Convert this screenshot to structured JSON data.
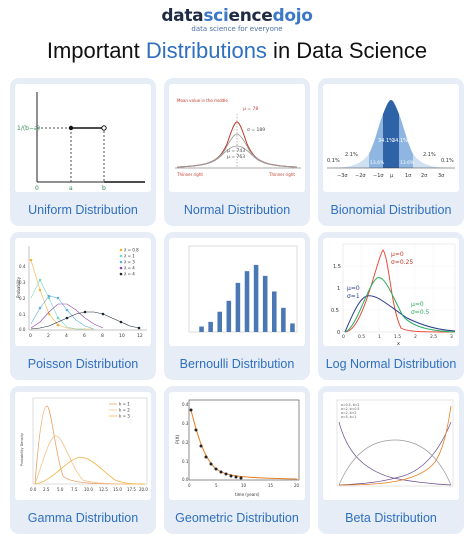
{
  "header": {
    "logo_part1": "data",
    "logo_accent": "sci",
    "logo_part2": "ence",
    "logo_part3": "dojo",
    "tagline": "data science for everyone",
    "title_before": "Important ",
    "title_highlight": "Distributions",
    "title_after": " in Data Science"
  },
  "colors": {
    "accent": "#2f6fc0",
    "card_bg": "#e6edf6",
    "bar_blue": "#4a78b5"
  },
  "cards": [
    {
      "label": "Uniform Distribution",
      "plot": {
        "y_labels": [
          "1/(b−a)"
        ],
        "x_labels": [
          "0",
          "a",
          "b"
        ]
      }
    },
    {
      "label": "Normal Distribution",
      "plot": {
        "annotations": [
          "Mean value in the middle",
          "μ = 78",
          "σ = 189",
          "μ = 743",
          "μ = 763",
          "Thinner right",
          "Thinner right"
        ]
      }
    },
    {
      "label": "Bionomial Distribution",
      "plot": {
        "percentages": [
          "0.1%",
          "2.1%",
          "13.6%",
          "34.1%",
          "34.1%",
          "13.6%",
          "2.1%",
          "0.1%"
        ],
        "x_labels": [
          "−3σ",
          "−2σ",
          "−1σ",
          "μ",
          "1σ",
          "2σ",
          "3σ"
        ]
      }
    },
    {
      "label": "Poisson Distribution",
      "plot": {
        "legend": [
          "λ = 0.8",
          "λ = 1",
          "λ = 3",
          "λ = 4",
          "λ = 4"
        ],
        "y_label": "Probability",
        "x_ticks": [
          "0",
          "2",
          "4",
          "6",
          "8",
          "10",
          "12"
        ],
        "y_ticks": [
          "0.4",
          "0.3",
          "0.2",
          "0.1",
          "0.0"
        ]
      }
    },
    {
      "label": "Bernoulli Distribution",
      "plot": {
        "bars": [
          0.07,
          0.13,
          0.26,
          0.4,
          0.63,
          0.78,
          0.86,
          0.72,
          0.52,
          0.31,
          0.11
        ]
      }
    },
    {
      "label": "Log Normal Distribution",
      "plot": {
        "annotations": [
          "μ=0",
          "σ=0.25",
          "μ=0",
          "σ=1",
          "μ=0",
          "σ=0.5"
        ],
        "x_label": "x",
        "x_ticks": [
          "0",
          "0.5",
          "1",
          "1.5",
          "2",
          "2.5",
          "3"
        ],
        "y_ticks": [
          "1.5",
          "1",
          "0.5",
          "0"
        ]
      }
    },
    {
      "label": "Gamma Distribution",
      "plot": {
        "legend": [
          "k = 1",
          "k = 2",
          "k = 3"
        ],
        "y_label": "Probability Density",
        "x_ticks": [
          "0.0",
          "2.5",
          "5.0",
          "7.5",
          "10.0",
          "12.5",
          "15.0",
          "17.5",
          "20.0"
        ]
      }
    },
    {
      "label": "Geometric Distribution",
      "plot": {
        "y_label": "P(X)",
        "x_label": "time (years)",
        "x_ticks": [
          "0",
          "5",
          "10",
          "15",
          "20"
        ],
        "y_ticks": [
          "0.4",
          "0.3",
          "0.2",
          "0.1",
          "0.0"
        ]
      }
    },
    {
      "label": "Beta Distribution",
      "plot": {
        "legend": [
          "a=0.5, b=2",
          "a=2, b=0.5",
          "a=2, b=2",
          "a=5, b=1"
        ]
      }
    }
  ]
}
